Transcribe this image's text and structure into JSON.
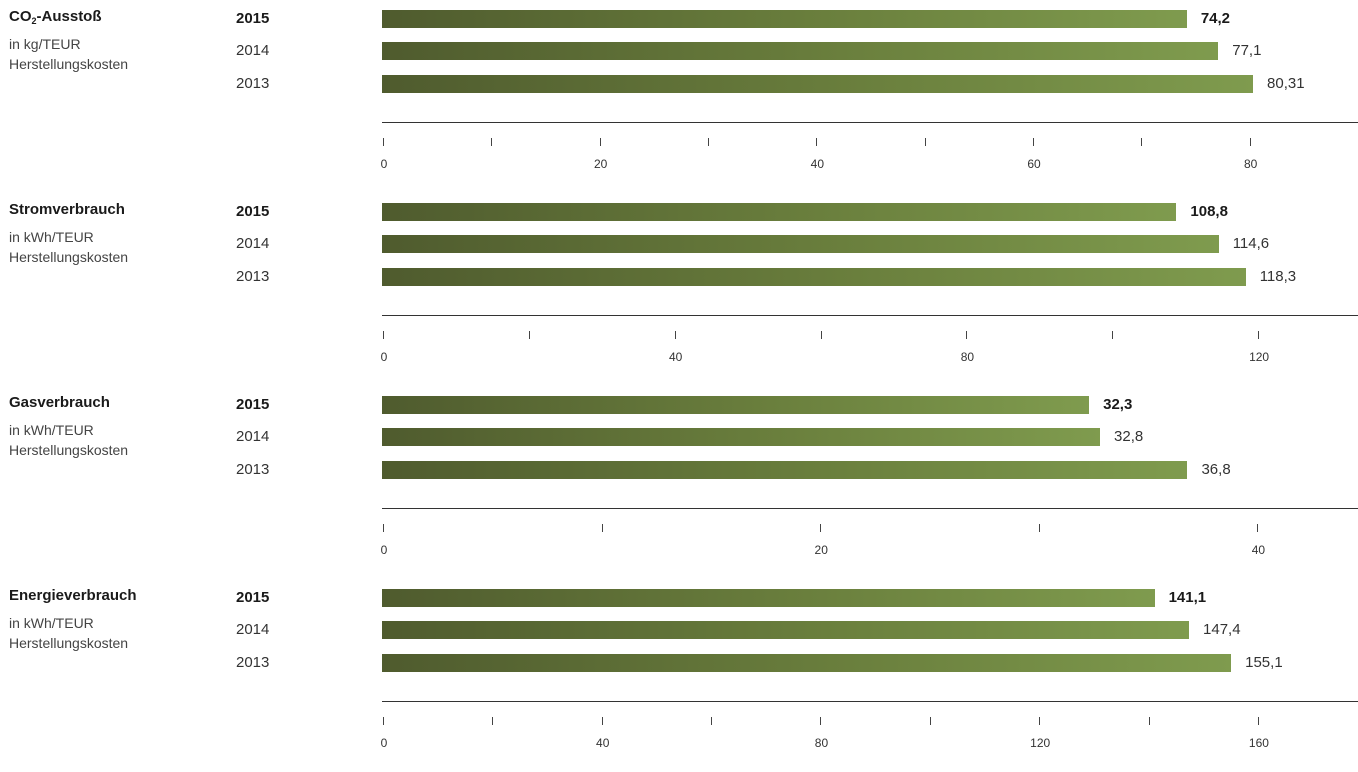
{
  "chart_data": [
    {
      "type": "bar",
      "title_main": "CO",
      "title_sub": "2",
      "title_rest": "-Ausstoß",
      "subtitle_line1": "in kg/TEUR",
      "subtitle_line2": "Herstellungskosten",
      "categories": [
        "2015",
        "2014",
        "2013"
      ],
      "values": [
        74.2,
        77.1,
        80.31
      ],
      "value_labels": [
        "74,2",
        "77,1",
        "80,31"
      ],
      "xlim": [
        0,
        90
      ],
      "major_ticks": [
        0,
        20,
        40,
        60,
        80
      ],
      "minor_ticks": [
        10,
        30,
        50,
        70
      ],
      "tick_labels": [
        "0",
        "20",
        "40",
        "60",
        "80"
      ]
    },
    {
      "type": "bar",
      "title_main": "Stromverbrauch",
      "subtitle_line1": "in kWh/TEUR",
      "subtitle_line2": "Herstellungskosten",
      "categories": [
        "2015",
        "2014",
        "2013"
      ],
      "values": [
        108.8,
        114.6,
        118.3
      ],
      "value_labels": [
        "108,8",
        "114,6",
        "118,3"
      ],
      "xlim": [
        0,
        133.7
      ],
      "major_ticks": [
        0,
        40,
        80,
        120
      ],
      "minor_ticks": [
        20,
        60,
        100
      ],
      "tick_labels": [
        "0",
        "40",
        "80",
        "120"
      ]
    },
    {
      "type": "bar",
      "title_main": "Gasverbrauch",
      "subtitle_line1": "in kWh/TEUR",
      "subtitle_line2": "Herstellungskosten",
      "categories": [
        "2015",
        "2014",
        "2013"
      ],
      "values": [
        32.3,
        32.8,
        36.8
      ],
      "value_labels": [
        "32,3",
        "32,8",
        "36,8"
      ],
      "xlim": [
        0,
        44.6
      ],
      "major_ticks": [
        0,
        20,
        40
      ],
      "minor_ticks": [
        10,
        30
      ],
      "tick_labels": [
        "0",
        "20",
        "40"
      ]
    },
    {
      "type": "bar",
      "title_main": "Energieverbrauch",
      "subtitle_line1": "in kWh/TEUR",
      "subtitle_line2": "Herstellungskosten",
      "categories": [
        "2015",
        "2014",
        "2013"
      ],
      "values": [
        141.1,
        147.4,
        155.1
      ],
      "value_labels": [
        "141,1",
        "147,4",
        "155,1"
      ],
      "xlim": [
        0,
        178.3
      ],
      "major_ticks": [
        0,
        40,
        80,
        120,
        160
      ],
      "minor_ticks": [
        20,
        60,
        100,
        140
      ],
      "tick_labels": [
        "0",
        "40",
        "80",
        "120",
        "160"
      ]
    }
  ],
  "colors": {
    "bar_start": "#4f5b2e",
    "bar_end": "#7f9b4e",
    "axis": "#333333"
  }
}
